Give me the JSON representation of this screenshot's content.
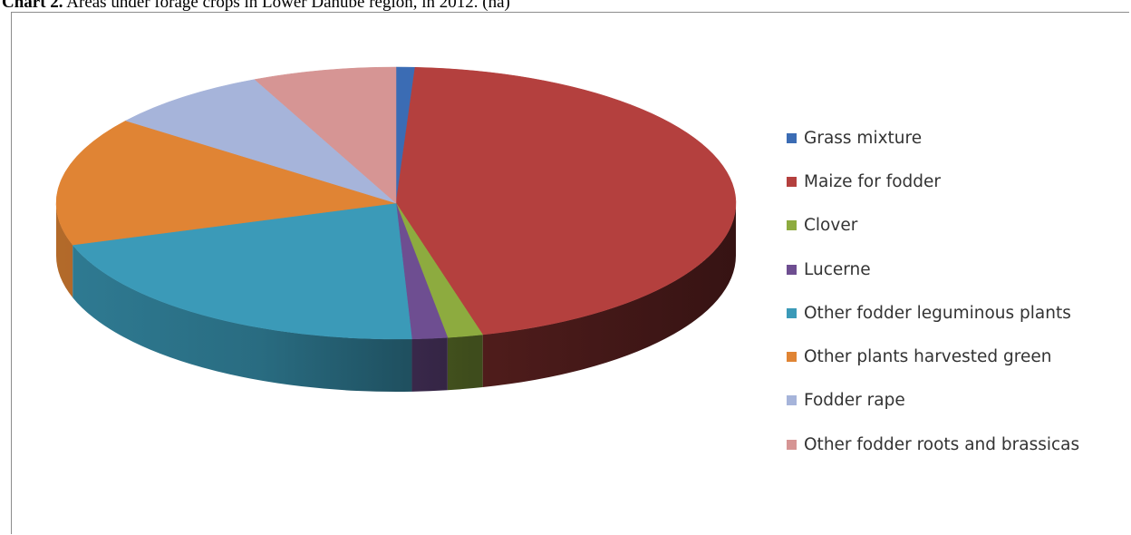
{
  "caption": {
    "bold": "Chart 2.",
    "rest": " Areas under forage crops in Lower Danube region, in 2012. (ha)"
  },
  "chart_data": {
    "type": "pie",
    "title": "Chart 2. Areas under forage crops in Lower Danube region, in 2012. (ha)",
    "unit": "ha",
    "three_d": true,
    "legend_position": "right",
    "categories": [
      "Grass mixture",
      "Maize for fodder",
      "Clover",
      "Lucerne",
      "Other fodder leguminous plants",
      "Other plants harvested green",
      "Fodder rape",
      "Other fodder roots and brassicas"
    ],
    "values": [
      0.9,
      45.5,
      1.7,
      1.7,
      21.0,
      15.5,
      7.9,
      6.9
    ],
    "values_note": "approximate share of total area (%)",
    "colors": [
      "#3b6cb4",
      "#b4403e",
      "#8dab3f",
      "#6e4e91",
      "#3b9ab8",
      "#e08434",
      "#a6b4da",
      "#d69594"
    ]
  }
}
